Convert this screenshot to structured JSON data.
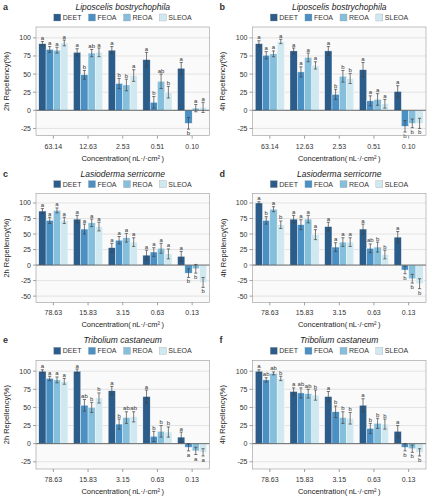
{
  "chart_data": [
    {
      "type": "bar",
      "title": "Liposcelis bostrychophila",
      "annotations": [
        "a"
      ],
      "xlabel": "Concentration( nL·/·cm² )",
      "ylabel": "2h Repellency(%)",
      "categories": [
        "63.14",
        "12.63",
        "2.53",
        "0.51",
        "0.10"
      ],
      "ylim": [
        -35,
        115
      ],
      "yticks": [
        -25,
        0,
        25,
        50,
        75,
        100
      ],
      "grid": true,
      "legend": "top",
      "series": [
        {
          "name": "DEET",
          "color": "#2b5c8a",
          "values": [
            92,
            80,
            83,
            70,
            58
          ],
          "errors": [
            3,
            5,
            5,
            10,
            8
          ],
          "letters": [
            "a",
            "a",
            "a",
            "a",
            "a"
          ]
        },
        {
          "name": "FEOA",
          "color": "#4a90c4",
          "values": [
            84,
            49,
            37,
            11,
            -18
          ],
          "errors": [
            4,
            6,
            7,
            8,
            8
          ],
          "letters": [
            "a",
            "b",
            "b",
            "b",
            "b"
          ]
        },
        {
          "name": "REOA",
          "color": "#85bfdc",
          "values": [
            83,
            79,
            35,
            40,
            3
          ],
          "errors": [
            4,
            5,
            8,
            10,
            5
          ],
          "letters": [
            "a",
            "ab",
            "b",
            "ab",
            "a"
          ]
        },
        {
          "name": "SLEOA",
          "color": "#d0e8f0",
          "values": [
            93,
            80,
            48,
            25,
            4
          ],
          "errors": [
            4,
            6,
            8,
            8,
            7
          ],
          "letters": [
            "a",
            "a",
            "a",
            "b",
            "a"
          ]
        }
      ]
    },
    {
      "type": "bar",
      "title": "Liposcelis bostrychophila",
      "annotations": [
        "b"
      ],
      "xlabel": "Concentration( nL·/·cm² )",
      "ylabel": "4h Repellency(%)",
      "categories": [
        "63.14",
        "12.63",
        "2.53",
        "0.51",
        "0.10"
      ],
      "ylim": [
        -35,
        115
      ],
      "yticks": [
        -25,
        0,
        25,
        50,
        75,
        100
      ],
      "grid": true,
      "legend": "top",
      "series": [
        {
          "name": "DEET",
          "color": "#2b5c8a",
          "values": [
            92,
            82,
            82,
            56,
            26
          ],
          "errors": [
            4,
            4,
            6,
            10,
            8
          ],
          "letters": [
            "a",
            "a",
            "a",
            "a",
            "a"
          ]
        },
        {
          "name": "FEOA",
          "color": "#4a90c4",
          "values": [
            76,
            53,
            22,
            13,
            -22
          ],
          "errors": [
            5,
            7,
            7,
            7,
            8
          ],
          "letters": [
            "a",
            "a",
            "b",
            "a",
            "b"
          ]
        },
        {
          "name": "REOA",
          "color": "#85bfdc",
          "values": [
            78,
            73,
            47,
            15,
            -18
          ],
          "errors": [
            4,
            6,
            8,
            8,
            6
          ],
          "letters": [
            "a",
            "a",
            "b",
            "a",
            "b"
          ]
        },
        {
          "name": "SLEOA",
          "color": "#d0e8f0",
          "values": [
            95,
            62,
            44,
            9,
            -18
          ],
          "errors": [
            3,
            5,
            7,
            6,
            7
          ],
          "letters": [
            "a",
            "a",
            "b",
            "a",
            "b"
          ]
        }
      ]
    },
    {
      "type": "bar",
      "title": "Lasioderma serricorne",
      "annotations": [
        "c"
      ],
      "xlabel": "Concentration( nL·/·cm² )",
      "ylabel": "2h Repellency(%)",
      "categories": [
        "78.63",
        "15.83",
        "3.15",
        "0.63",
        "0.13"
      ],
      "ylim": [
        -60,
        115
      ],
      "yticks": [
        -50,
        -25,
        0,
        25,
        50,
        75,
        100
      ],
      "grid": true,
      "legend": "top",
      "series": [
        {
          "name": "DEET",
          "color": "#2b5c8a",
          "values": [
            87,
            74,
            28,
            16,
            14
          ],
          "errors": [
            4,
            6,
            7,
            8,
            8
          ],
          "letters": [
            "a",
            "a",
            "a",
            "a",
            "a"
          ]
        },
        {
          "name": "FEOA",
          "color": "#4a90c4",
          "values": [
            72,
            58,
            40,
            21,
            -13
          ],
          "errors": [
            5,
            8,
            6,
            7,
            7
          ],
          "letters": [
            "a",
            "a",
            "a",
            "a",
            "b"
          ]
        },
        {
          "name": "REOA",
          "color": "#85bfdc",
          "values": [
            88,
            68,
            44,
            27,
            -6
          ],
          "errors": [
            4,
            6,
            7,
            8,
            7
          ],
          "letters": [
            "a",
            "a",
            "a",
            "a",
            "b"
          ]
        },
        {
          "name": "SLEOA",
          "color": "#d0e8f0",
          "values": [
            72,
            62,
            37,
            18,
            -28
          ],
          "errors": [
            5,
            7,
            7,
            8,
            8
          ],
          "letters": [
            "a",
            "a",
            "a",
            "a",
            "b"
          ]
        }
      ]
    },
    {
      "type": "bar",
      "title": "Lasioderma serricorne",
      "annotations": [
        "d"
      ],
      "xlabel": "Concentration( nL·/·cm² )",
      "ylabel": "4h Repellency(%)",
      "categories": [
        "78.63",
        "15.83",
        "3.15",
        "0.63",
        "0.13"
      ],
      "ylim": [
        -60,
        115
      ],
      "yticks": [
        -50,
        -25,
        0,
        25,
        50,
        75,
        100
      ],
      "grid": true,
      "legend": "top",
      "series": [
        {
          "name": "DEET",
          "color": "#2b5c8a",
          "values": [
            100,
            74,
            62,
            58,
            45
          ],
          "errors": [
            2,
            6,
            7,
            8,
            9
          ],
          "letters": [
            "a",
            "a",
            "a",
            "a",
            "a"
          ]
        },
        {
          "name": "FEOA",
          "color": "#4a90c4",
          "values": [
            72,
            65,
            29,
            27,
            -8
          ],
          "errors": [
            6,
            8,
            7,
            7,
            6
          ],
          "letters": [
            "b",
            "a",
            "a",
            "ab",
            "b"
          ]
        },
        {
          "name": "REOA",
          "color": "#85bfdc",
          "values": [
            90,
            74,
            37,
            29,
            -22
          ],
          "errors": [
            4,
            6,
            7,
            8,
            7
          ],
          "letters": [
            "a",
            "a",
            "a",
            "b",
            "b"
          ]
        },
        {
          "name": "SLEOA",
          "color": "#d0e8f0",
          "values": [
            65,
            49,
            37,
            17,
            -30
          ],
          "errors": [
            6,
            8,
            7,
            7,
            8
          ],
          "letters": [
            "b",
            "a",
            "a",
            "b",
            "b"
          ]
        }
      ]
    },
    {
      "type": "bar",
      "title": "Tribolium castaneum",
      "annotations": [
        "e"
      ],
      "xlabel": "Concentration( nL·/·cm² )",
      "ylabel": "2h Repellency(%)",
      "categories": [
        "78.63",
        "15.83",
        "3.15",
        "0.63",
        "0.13"
      ],
      "ylim": [
        -35,
        115
      ],
      "yticks": [
        -25,
        0,
        25,
        50,
        75,
        100
      ],
      "grid": true,
      "legend": "top",
      "series": [
        {
          "name": "DEET",
          "color": "#2b5c8a",
          "values": [
            100,
            100,
            73,
            65,
            9
          ],
          "errors": [
            2,
            3,
            6,
            9,
            7
          ],
          "letters": [
            "a",
            "a",
            "a",
            "a",
            "a"
          ]
        },
        {
          "name": "FEOA",
          "color": "#4a90c4",
          "values": [
            90,
            53,
            27,
            10,
            -5
          ],
          "errors": [
            3,
            8,
            7,
            7,
            5
          ],
          "letters": [
            "a",
            "ab",
            "b",
            "b",
            "a"
          ]
        },
        {
          "name": "REOA",
          "color": "#85bfdc",
          "values": [
            88,
            50,
            36,
            17,
            -10
          ],
          "errors": [
            4,
            7,
            8,
            8,
            5
          ],
          "letters": [
            "a",
            "b",
            "ab",
            "b",
            "a"
          ]
        },
        {
          "name": "SLEOA",
          "color": "#d0e8f0",
          "values": [
            86,
            63,
            37,
            16,
            -12
          ],
          "errors": [
            4,
            7,
            7,
            7,
            5
          ],
          "letters": [
            "a",
            "b",
            "ab",
            "b",
            "a"
          ]
        }
      ]
    },
    {
      "type": "bar",
      "title": "Tribolium castaneum",
      "annotations": [
        "f"
      ],
      "xlabel": "Concentration( nL·/·cm² )",
      "ylabel": "4h Repellency(%)",
      "categories": [
        "78.63",
        "15.83",
        "3.15",
        "0.63",
        "0.13"
      ],
      "ylim": [
        -35,
        115
      ],
      "yticks": [
        -25,
        0,
        25,
        50,
        75,
        100
      ],
      "grid": true,
      "legend": "top",
      "series": [
        {
          "name": "DEET",
          "color": "#2b5c8a",
          "values": [
            100,
            72,
            65,
            53,
            17
          ],
          "errors": [
            2,
            5,
            7,
            9,
            8
          ],
          "letters": [
            "a",
            "a",
            "a",
            "a",
            "a"
          ]
        },
        {
          "name": "FEOA",
          "color": "#4a90c4",
          "values": [
            88,
            70,
            44,
            21,
            -5
          ],
          "errors": [
            3,
            7,
            8,
            7,
            5
          ],
          "letters": [
            "ab",
            "ab",
            "b",
            "b",
            "b"
          ]
        },
        {
          "name": "REOA",
          "color": "#85bfdc",
          "values": [
            97,
            69,
            36,
            28,
            -7
          ],
          "errors": [
            2,
            6,
            8,
            7,
            5
          ],
          "letters": [
            "ab",
            "ab",
            "b",
            "b",
            "b"
          ]
        },
        {
          "name": "SLEOA",
          "color": "#d0e8f0",
          "values": [
            90,
            67,
            35,
            27,
            -12
          ],
          "errors": [
            3,
            7,
            8,
            7,
            5
          ],
          "letters": [
            "b",
            "b",
            "b",
            "b",
            "b"
          ]
        }
      ]
    }
  ]
}
